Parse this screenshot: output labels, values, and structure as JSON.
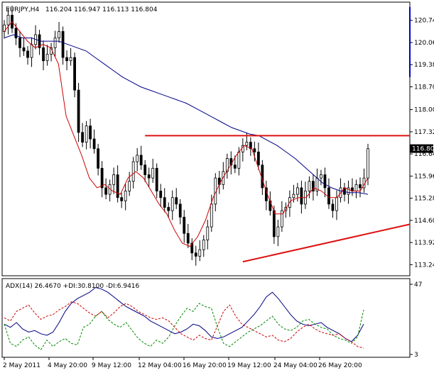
{
  "chart_data": [
    {
      "type": "candlestick",
      "symbol_label": "EURJPY,H4",
      "ohlc_label": "116.204 116.947 116.113 116.804",
      "last_price_label": "116.804",
      "y_ticks": [
        "120.740",
        "120.060",
        "119.380",
        "118.700",
        "118.000",
        "117.320",
        "116.640",
        "115.960",
        "115.280",
        "114.600",
        "113.920",
        "113.240"
      ],
      "ylim": [
        112.9,
        121.3
      ],
      "x_tick_labels": [
        "2 May 2011",
        "4 May 20:00",
        "9 May 12:00",
        "12 May 04:00",
        "16 May 20:00",
        "19 May 12:00",
        "24 May 04:00",
        "26 May 20:00"
      ],
      "close_series_approx": [
        120.6,
        120.9,
        120.5,
        120.2,
        119.9,
        119.8,
        119.6,
        120.0,
        120.3,
        119.9,
        119.5,
        119.7,
        119.9,
        120.2,
        120.4,
        119.6,
        119.5,
        119.6,
        118.6,
        117.3,
        117.0,
        117.5,
        117.1,
        116.8,
        116.2,
        115.6,
        115.4,
        115.7,
        116.0,
        115.3,
        115.2,
        115.5,
        115.8,
        116.4,
        116.6,
        116.3,
        116.0,
        115.9,
        116.2,
        115.5,
        115.3,
        115.0,
        114.9,
        115.3,
        115.1,
        114.7,
        114.2,
        113.9,
        113.6,
        113.5,
        113.7,
        114.0,
        114.4,
        115.1,
        115.9,
        115.7,
        116.1,
        116.5,
        116.3,
        116.2,
        116.7,
        116.9,
        117.0,
        116.8,
        116.7,
        116.3,
        115.6,
        115.2,
        114.9,
        114.1,
        114.4,
        114.9,
        115.0,
        115.3,
        115.4,
        115.6,
        115.1,
        115.5,
        115.8,
        115.5,
        115.9,
        116.0,
        115.6,
        115.1,
        114.9,
        115.3,
        115.6,
        115.4,
        115.6,
        115.5,
        115.7,
        115.6,
        115.9,
        116.8
      ],
      "ma_slow_approx": [
        120.2,
        120.3,
        120.2,
        120.2,
        120.1,
        120.1,
        120.1,
        120.0,
        119.9,
        119.8,
        119.6,
        119.4,
        119.2,
        119.0,
        118.85,
        118.7,
        118.6,
        118.5,
        118.4,
        118.3,
        118.2,
        118.05,
        117.9,
        117.75,
        117.6,
        117.45,
        117.35,
        117.25,
        117.2,
        117.05,
        116.9,
        116.7,
        116.5,
        116.25,
        116.0,
        115.75,
        115.6,
        115.5,
        115.45,
        115.45,
        115.4
      ],
      "ma_fast_approx": [
        120.4,
        120.7,
        120.4,
        120.1,
        119.9,
        120.0,
        119.9,
        119.4,
        117.8,
        117.2,
        116.6,
        115.9,
        115.6,
        115.7,
        115.5,
        115.4,
        115.9,
        116.1,
        115.9,
        115.5,
        115.1,
        114.8,
        114.3,
        113.9,
        113.8,
        114.1,
        114.6,
        115.3,
        115.8,
        116.2,
        116.6,
        116.9,
        116.8,
        116.1,
        115.4,
        114.8,
        114.8,
        115.2,
        115.3,
        115.3,
        115.6,
        115.5,
        115.3,
        115.3,
        115.6,
        115.5,
        115.5,
        115.9
      ],
      "trendlines": [
        {
          "name": "descending resistance",
          "color": "#0000cc",
          "from": [
            119.0,
            121.15
          ],
          "to": [
            121.2,
            119.0
          ]
        },
        {
          "name": "horizontal resistance",
          "color": "#dd1111",
          "from": [
            36.0,
            117.2
          ],
          "to": [
            121.2,
            117.2
          ]
        },
        {
          "name": "rising support",
          "color": "#dd1111",
          "from": [
            61.0,
            113.33
          ],
          "to": [
            121.2,
            114.48
          ]
        }
      ],
      "colors": {
        "candle": "#000000",
        "ma_fast": "#cc0000",
        "ma_slow": "#000088",
        "frame": "#000000",
        "last_price_box": "#000000",
        "last_price_text": "#ffffff"
      }
    },
    {
      "type": "line",
      "label": "ADX(14) 26.4670 +DI:30.8100 -DI:6.9416",
      "y_ticks": [
        "47",
        "3"
      ],
      "ylim": [
        3,
        47
      ],
      "series": [
        {
          "name": "ADX",
          "color": "#000080",
          "dash": "solid",
          "values": [
            22,
            20,
            23,
            19,
            17,
            18,
            16,
            15,
            17,
            23,
            30,
            35,
            38,
            40,
            42,
            45,
            44,
            42,
            39,
            36,
            33,
            31,
            29,
            27,
            24,
            22,
            20,
            18,
            16,
            17,
            19,
            22,
            21,
            18,
            14,
            13,
            14,
            16,
            18,
            20,
            24,
            28,
            33,
            39,
            42,
            38,
            33,
            28,
            24,
            22,
            21,
            22,
            23,
            20,
            18,
            16,
            13,
            11,
            15,
            22
          ]
        },
        {
          "name": "+DI",
          "color": "#008800",
          "dash": "dashed",
          "values": [
            22,
            10,
            8,
            12,
            14,
            9,
            6,
            12,
            8,
            11,
            13,
            10,
            9,
            20,
            22,
            27,
            30,
            25,
            22,
            20,
            23,
            18,
            13,
            10,
            8,
            12,
            10,
            14,
            21,
            27,
            32,
            30,
            35,
            33,
            32,
            20,
            10,
            8,
            11,
            14,
            17,
            19,
            21,
            24,
            27,
            22,
            19,
            18,
            20,
            24,
            25,
            22,
            20,
            19,
            15,
            13,
            12,
            10,
            14,
            31
          ]
        },
        {
          "name": "-DI",
          "color": "#cc0000",
          "dash": "dashed",
          "values": [
            26,
            24,
            30,
            32,
            34,
            29,
            25,
            27,
            28,
            31,
            33,
            36,
            35,
            32,
            29,
            27,
            30,
            26,
            29,
            33,
            35,
            33,
            30,
            28,
            26,
            25,
            26,
            24,
            20,
            16,
            14,
            12,
            15,
            13,
            12,
            21,
            30,
            34,
            27,
            22,
            20,
            18,
            16,
            14,
            15,
            12,
            11,
            13,
            17,
            20,
            22,
            19,
            17,
            16,
            15,
            16,
            13,
            11,
            8,
            7
          ]
        }
      ]
    }
  ]
}
